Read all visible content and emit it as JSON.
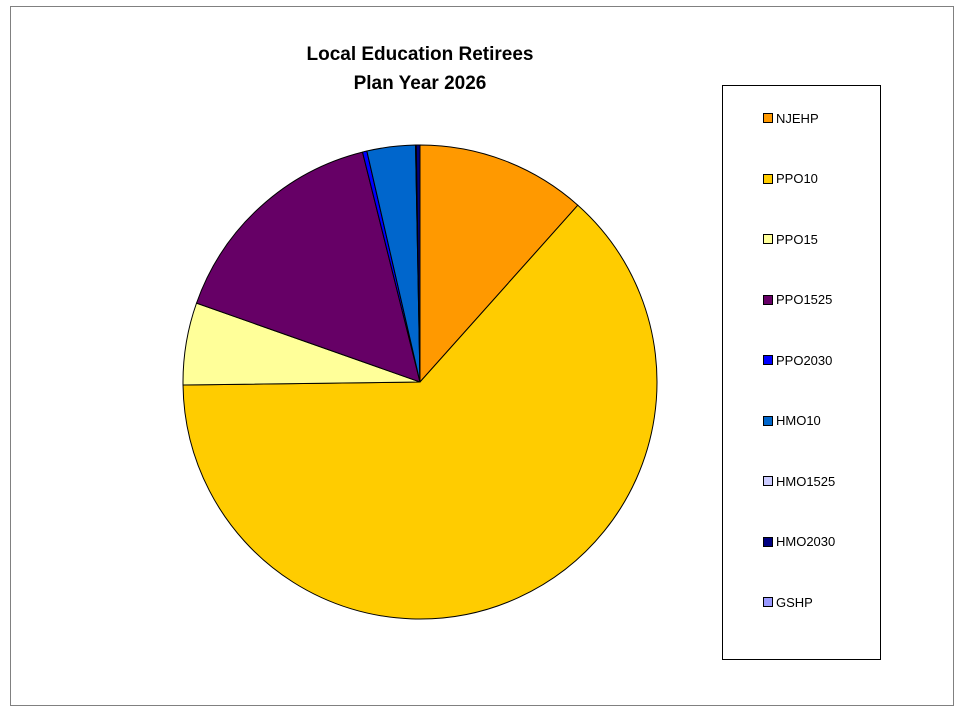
{
  "chart_data": {
    "type": "pie",
    "title": "Local Education Retirees",
    "subtitle": "Plan Year 2026",
    "legend_position": "right",
    "slices": [
      {
        "name": "NJEHP",
        "value": 11.6,
        "color": "#FF9900"
      },
      {
        "name": "PPO10",
        "value": 63.2,
        "color": "#FFCC00"
      },
      {
        "name": "PPO15",
        "value": 5.6,
        "color": "#FFFF99"
      },
      {
        "name": "PPO1525",
        "value": 15.7,
        "color": "#660066"
      },
      {
        "name": "PPO2030",
        "value": 0.3,
        "color": "#0000FF"
      },
      {
        "name": "HMO10",
        "value": 3.3,
        "color": "#0066CC"
      },
      {
        "name": "HMO1525",
        "value": 0.05,
        "color": "#CCCCFF"
      },
      {
        "name": "HMO2030",
        "value": 0.25,
        "color": "#000080"
      },
      {
        "name": "GSHP",
        "value": 0.0,
        "color": "#9999FF"
      }
    ]
  }
}
